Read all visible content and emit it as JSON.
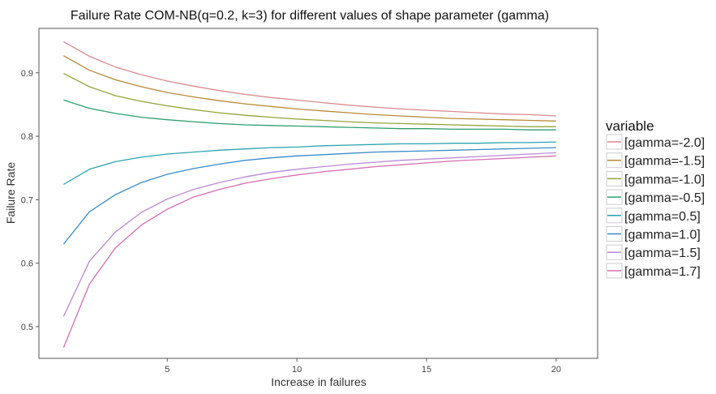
{
  "chart_data": {
    "type": "line",
    "title": "Failure Rate COM-NB(q=0.2, k=3) for different values of shape parameter (gamma)",
    "xlabel": "Increase in failures",
    "ylabel": "Failure Rate",
    "xlim": [
      0.05,
      21.6
    ],
    "ylim": [
      0.45,
      0.97
    ],
    "xticks": [
      5,
      10,
      15,
      20
    ],
    "xtick_labels": [
      "5",
      "10",
      "15",
      "20"
    ],
    "yticks": [
      0.5,
      0.6,
      0.7,
      0.8,
      0.9
    ],
    "ytick_labels": [
      "0.5",
      "0.6",
      "0.7",
      "0.8",
      "0.9"
    ],
    "grid": false,
    "legend": {
      "title": "variable",
      "position": "right"
    },
    "x": [
      1,
      2,
      3,
      4,
      5,
      6,
      7,
      8,
      9,
      10,
      11,
      12,
      13,
      14,
      15,
      16,
      17,
      18,
      19,
      20
    ],
    "series": [
      {
        "name": "[gamma=-2.0]",
        "color": "#d98a8e",
        "values": [
          0.949,
          0.926,
          0.909,
          0.897,
          0.887,
          0.879,
          0.872,
          0.866,
          0.861,
          0.857,
          0.853,
          0.849,
          0.846,
          0.843,
          0.841,
          0.839,
          0.837,
          0.835,
          0.834,
          0.832
        ]
      },
      {
        "name": "[gamma=-1.5]",
        "color": "#b88a3a",
        "values": [
          0.927,
          0.904,
          0.889,
          0.878,
          0.869,
          0.862,
          0.856,
          0.851,
          0.847,
          0.843,
          0.84,
          0.837,
          0.834,
          0.832,
          0.83,
          0.828,
          0.827,
          0.826,
          0.825,
          0.824
        ]
      },
      {
        "name": "[gamma=-1.0]",
        "color": "#94a43a",
        "values": [
          0.899,
          0.878,
          0.864,
          0.855,
          0.848,
          0.842,
          0.837,
          0.833,
          0.83,
          0.827,
          0.825,
          0.823,
          0.821,
          0.82,
          0.819,
          0.818,
          0.817,
          0.816,
          0.815,
          0.815
        ]
      },
      {
        "name": "[gamma=-0.5]",
        "color": "#2e9e72",
        "values": [
          0.857,
          0.844,
          0.836,
          0.83,
          0.826,
          0.823,
          0.82,
          0.818,
          0.817,
          0.816,
          0.815,
          0.814,
          0.813,
          0.812,
          0.812,
          0.811,
          0.811,
          0.811,
          0.81,
          0.81
        ]
      },
      {
        "name": "[gamma=0.5]",
        "color": "#2aa4ae",
        "values": [
          0.724,
          0.748,
          0.76,
          0.767,
          0.772,
          0.775,
          0.778,
          0.78,
          0.782,
          0.783,
          0.785,
          0.786,
          0.787,
          0.788,
          0.788,
          0.789,
          0.789,
          0.79,
          0.79,
          0.791
        ]
      },
      {
        "name": "[gamma=1.0]",
        "color": "#3a8cc8",
        "values": [
          0.63,
          0.681,
          0.708,
          0.727,
          0.74,
          0.749,
          0.756,
          0.762,
          0.766,
          0.769,
          0.771,
          0.773,
          0.775,
          0.776,
          0.777,
          0.778,
          0.779,
          0.78,
          0.781,
          0.782
        ]
      },
      {
        "name": "[gamma=1.5]",
        "color": "#b98ad6",
        "values": [
          0.516,
          0.603,
          0.649,
          0.68,
          0.701,
          0.716,
          0.727,
          0.736,
          0.743,
          0.748,
          0.752,
          0.756,
          0.759,
          0.762,
          0.764,
          0.766,
          0.768,
          0.77,
          0.772,
          0.774
        ]
      },
      {
        "name": "[gamma=1.7]",
        "color": "#d46eb0",
        "values": [
          0.467,
          0.567,
          0.624,
          0.66,
          0.685,
          0.704,
          0.716,
          0.726,
          0.733,
          0.739,
          0.744,
          0.748,
          0.752,
          0.755,
          0.758,
          0.761,
          0.763,
          0.765,
          0.767,
          0.769
        ]
      }
    ]
  }
}
